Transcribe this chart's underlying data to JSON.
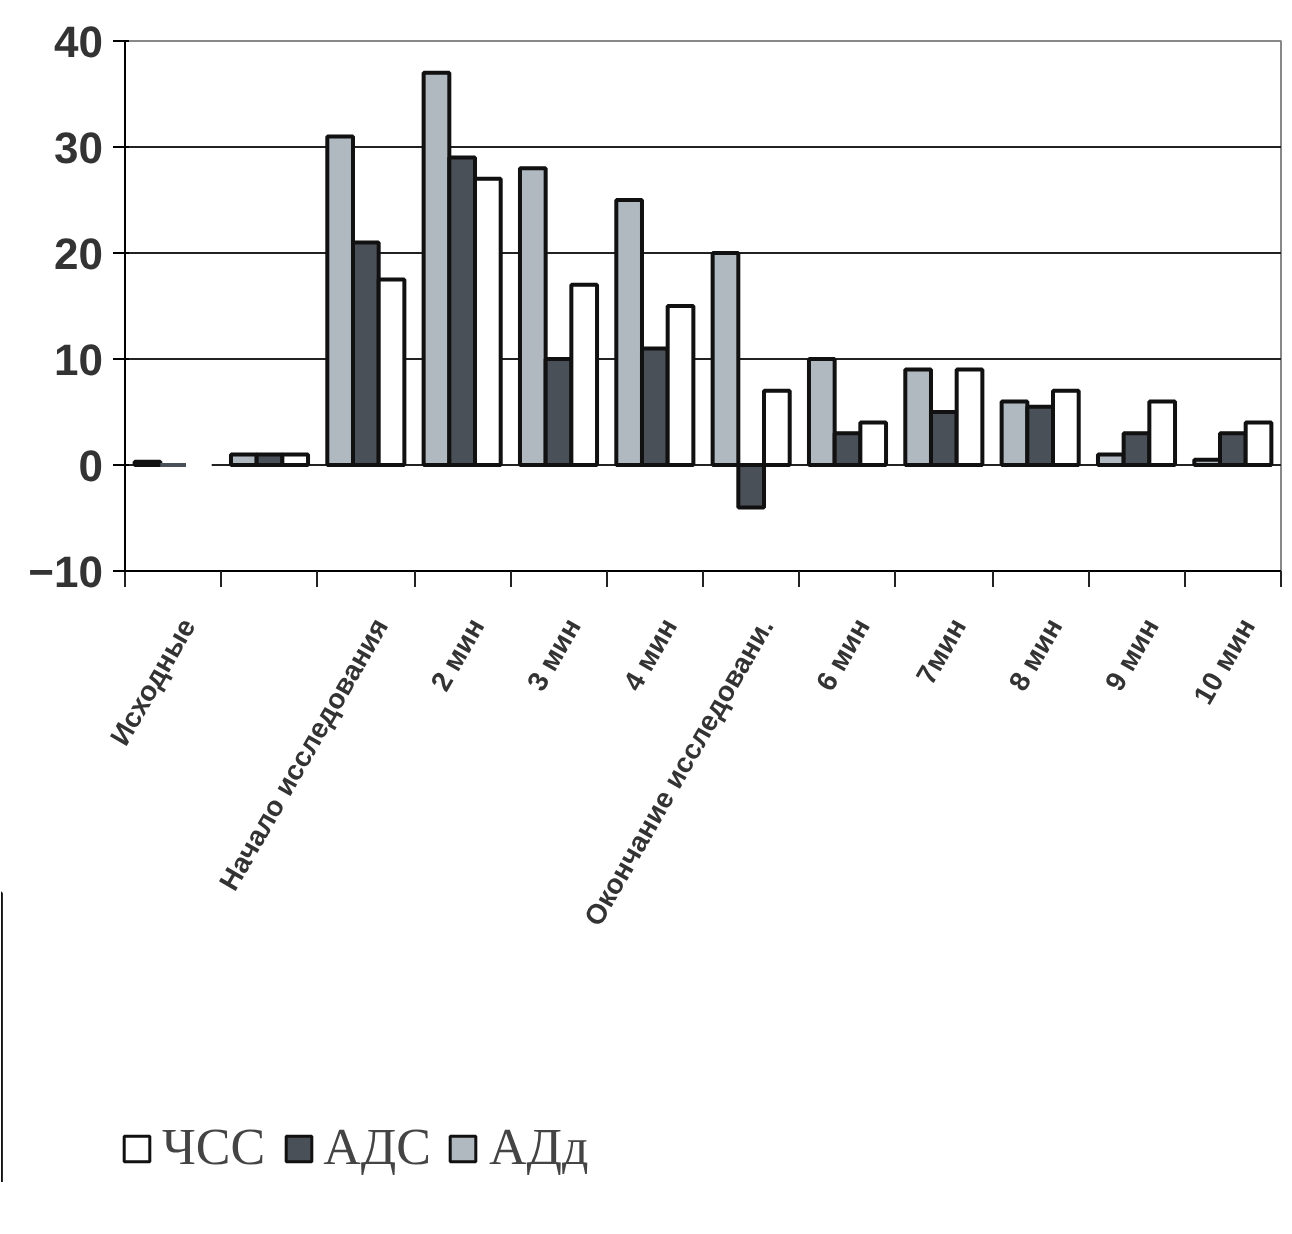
{
  "chart_data": {
    "type": "bar",
    "categories": [
      "Исходные",
      null,
      "Начало исследования",
      "2 мин",
      "3 мин",
      "4 мин",
      "Окончание исследовани.",
      "6 мин",
      "7мин",
      "8 мин",
      "9 мин",
      "10 мин"
    ],
    "series": [
      {
        "name": "АДд",
        "color": "#b0b8c0",
        "values": [
          0.3,
          1,
          31,
          37,
          28,
          25,
          20,
          10,
          9,
          6,
          1,
          0.5
        ]
      },
      {
        "name": "АДС",
        "color": "#4a5058",
        "values": [
          0,
          1,
          21,
          29,
          10,
          11,
          -4,
          3,
          5,
          5.5,
          3,
          3
        ]
      },
      {
        "name": "ЧСС",
        "color": "#ffffff",
        "values": [
          0,
          1,
          17.5,
          27,
          17,
          15,
          7,
          4,
          9,
          7,
          6,
          4
        ]
      }
    ],
    "ylim": [
      -10,
      40
    ],
    "yticks": [
      -10,
      0,
      10,
      20,
      30,
      40
    ],
    "grid": "y",
    "legend": "bottom"
  }
}
